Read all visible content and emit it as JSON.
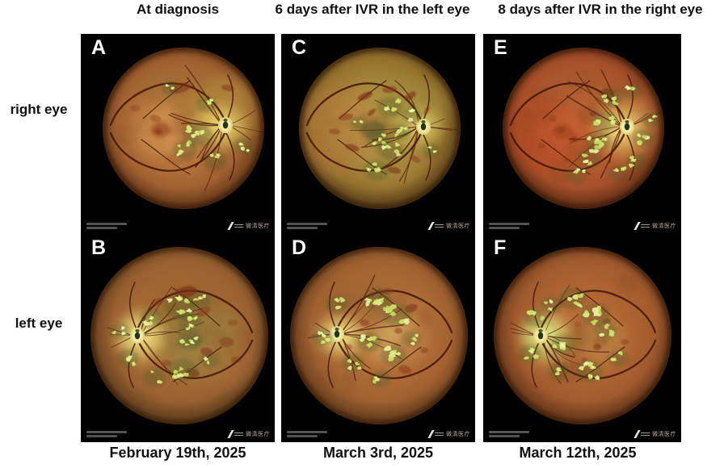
{
  "figure": {
    "col_headers": [
      "At diagnosis",
      "6 days after IVR in the left eye",
      "8 days after IVR in the right eye"
    ],
    "row_labels": [
      "right eye",
      "left eye"
    ],
    "captions": [
      "February 19th, 2025",
      "March 3rd, 2025",
      "March 12th, 2025"
    ],
    "panels": [
      {
        "label": "A"
      },
      {
        "label": "C"
      },
      {
        "label": "E"
      },
      {
        "label": "B"
      },
      {
        "label": "D"
      },
      {
        "label": "F"
      }
    ],
    "device_watermark": "微清医疗",
    "palette": {
      "page_bg": "#ffffff",
      "panel_bg": "#000000",
      "text": "#111111",
      "panel_letter": "#ffffff",
      "fundus_orange": "#b5713a",
      "exudate_yellow_green": "#d9ea7e",
      "hemorrhage_red": "#7d2d18",
      "vessel_dark_red": "#471a0b",
      "disc_yellow": "#e7d685"
    }
  }
}
